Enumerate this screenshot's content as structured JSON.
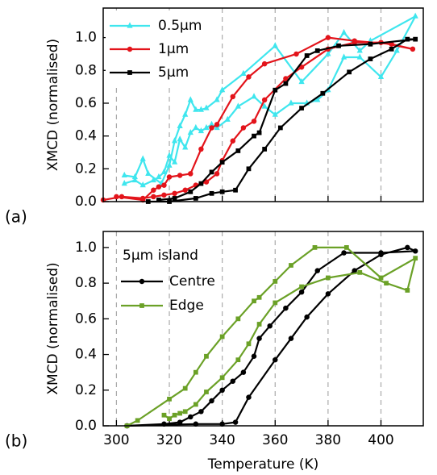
{
  "chart_data": [
    {
      "type": "line",
      "panel_label": "(a)",
      "ylabel": "XMCD (normalised)",
      "xlim": [
        295,
        416
      ],
      "xticks": [
        300,
        320,
        340,
        360,
        380,
        400
      ],
      "show_xtick_labels": false,
      "ylim": [
        0,
        1.18
      ],
      "yticks": [
        {
          "value": 0,
          "label": "0.0"
        },
        {
          "value": 0.2,
          "label": "0.2"
        },
        {
          "value": 0.4,
          "label": "0.4"
        },
        {
          "value": 0.6,
          "label": "0.6"
        },
        {
          "value": 0.8,
          "label": "0.8"
        },
        {
          "value": 1.0,
          "label": "1.0"
        }
      ],
      "grid": "x-dashed",
      "legend": "top-left",
      "series": [
        {
          "name": "0.5µm",
          "color": "#3fe6ee",
          "marker": "triangle",
          "x": [
            303,
            307,
            310,
            314,
            316,
            318,
            320,
            322,
            324,
            326,
            328,
            330,
            332,
            334,
            336,
            338,
            342,
            346,
            352,
            356,
            360,
            366,
            372,
            376,
            380,
            386,
            392,
            400,
            406,
            413,
            396,
            392,
            386,
            380,
            370,
            360,
            348,
            340,
            338,
            334,
            332,
            330,
            328,
            326,
            324,
            322,
            320,
            317,
            312,
            310,
            307,
            303
          ],
          "values": [
            0.11,
            0.13,
            0.1,
            0.13,
            0.15,
            0.18,
            0.28,
            0.24,
            0.38,
            0.33,
            0.42,
            0.45,
            0.43,
            0.45,
            0.47,
            0.45,
            0.5,
            0.58,
            0.64,
            0.58,
            0.53,
            0.6,
            0.6,
            0.62,
            0.68,
            0.88,
            0.88,
            0.76,
            0.92,
            1.13,
            0.98,
            0.92,
            1.03,
            0.9,
            0.73,
            0.95,
            0.78,
            0.68,
            0.62,
            0.57,
            0.56,
            0.56,
            0.62,
            0.53,
            0.46,
            0.37,
            0.22,
            0.11,
            0.17,
            0.26,
            0.15,
            0.16
          ]
        },
        {
          "name": "1µm",
          "color": "#e3141b",
          "marker": "circle",
          "x": [
            295,
            302,
            310,
            314,
            318,
            322,
            326,
            330,
            334,
            338,
            340,
            344,
            348,
            352,
            356,
            364,
            370,
            380,
            390,
            400,
            412,
            404,
            390,
            380,
            368,
            356,
            350,
            344,
            338,
            336,
            332,
            328,
            324,
            320,
            318,
            316,
            314,
            310,
            300
          ],
          "values": [
            0.01,
            0.03,
            0.02,
            0.03,
            0.04,
            0.05,
            0.07,
            0.1,
            0.12,
            0.17,
            0.25,
            0.37,
            0.45,
            0.49,
            0.62,
            0.75,
            0.82,
            0.93,
            0.97,
            0.97,
            0.93,
            0.96,
            0.98,
            1.0,
            0.9,
            0.84,
            0.76,
            0.64,
            0.47,
            0.45,
            0.32,
            0.17,
            0.16,
            0.15,
            0.1,
            0.09,
            0.07,
            0.01,
            0.03
          ]
        },
        {
          "name": "5µm",
          "color": "#000000",
          "marker": "square",
          "x": [
            312,
            320,
            330,
            336,
            340,
            345,
            350,
            356,
            362,
            370,
            378,
            388,
            396,
            404,
            410,
            413,
            396,
            384,
            376,
            372,
            364,
            360,
            354,
            352,
            346,
            340,
            336,
            332,
            328,
            322,
            316
          ],
          "values": [
            0.0,
            0.0,
            0.02,
            0.05,
            0.06,
            0.07,
            0.2,
            0.32,
            0.45,
            0.57,
            0.66,
            0.79,
            0.87,
            0.93,
            0.99,
            0.99,
            0.96,
            0.95,
            0.92,
            0.89,
            0.72,
            0.68,
            0.42,
            0.4,
            0.31,
            0.24,
            0.18,
            0.11,
            0.06,
            0.02,
            0.01
          ]
        }
      ]
    },
    {
      "type": "line",
      "panel_label": "(b)",
      "ylabel": "XMCD (normalised)",
      "xlabel": "Temperature (K)",
      "xlim": [
        295,
        416
      ],
      "xticks": [
        300,
        320,
        340,
        360,
        380,
        400
      ],
      "show_xtick_labels": true,
      "ylim": [
        0,
        1.09
      ],
      "yticks": [
        {
          "value": 0,
          "label": "0.0"
        },
        {
          "value": 0.2,
          "label": "0.2"
        },
        {
          "value": 0.4,
          "label": "0.4"
        },
        {
          "value": 0.6,
          "label": "0.6"
        },
        {
          "value": 0.8,
          "label": "0.8"
        },
        {
          "value": 1.0,
          "label": "1.0"
        }
      ],
      "grid": "x-dashed",
      "legend": "top-left",
      "legend_title": "5µm island",
      "series": [
        {
          "name": "Centre",
          "color": "#000000",
          "marker": "circle",
          "x": [
            304,
            330,
            340,
            345,
            350,
            360,
            366,
            372,
            380,
            390,
            400,
            410,
            413,
            400,
            386,
            376,
            370,
            364,
            358,
            354,
            352,
            348,
            344,
            340,
            336,
            332,
            328,
            324,
            318,
            304
          ],
          "values": [
            0.0,
            0.01,
            0.01,
            0.02,
            0.16,
            0.37,
            0.49,
            0.61,
            0.74,
            0.87,
            0.96,
            1.0,
            0.98,
            0.97,
            0.97,
            0.87,
            0.75,
            0.66,
            0.56,
            0.49,
            0.39,
            0.3,
            0.25,
            0.2,
            0.14,
            0.08,
            0.05,
            0.02,
            0.01,
            0.0
          ]
        },
        {
          "name": "Edge",
          "color": "#6ba127",
          "marker": "square",
          "x": [
            318,
            320,
            322,
            324,
            326,
            330,
            334,
            340,
            346,
            350,
            354,
            360,
            370,
            380,
            392,
            402,
            410,
            413,
            400,
            387,
            375,
            366,
            360,
            354,
            352,
            346,
            340,
            334,
            330,
            326,
            320,
            308,
            304
          ],
          "values": [
            0.06,
            0.04,
            0.06,
            0.07,
            0.08,
            0.12,
            0.19,
            0.27,
            0.37,
            0.46,
            0.57,
            0.69,
            0.78,
            0.83,
            0.86,
            0.8,
            0.76,
            0.94,
            0.83,
            1.0,
            1.0,
            0.9,
            0.81,
            0.72,
            0.7,
            0.6,
            0.5,
            0.39,
            0.3,
            0.21,
            0.15,
            0.03,
            0.0
          ]
        }
      ]
    }
  ]
}
